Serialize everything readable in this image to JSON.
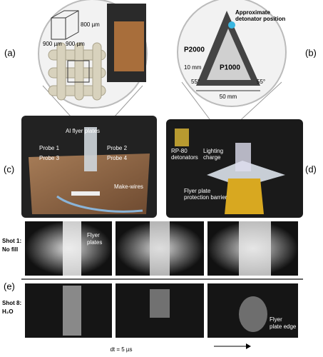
{
  "panel_a": {
    "label": "(a)",
    "dims": [
      "900 µm",
      "900 µm",
      "800 µm"
    ]
  },
  "panel_b": {
    "label": "(b)",
    "annotation": [
      "Approximate",
      "detonator position"
    ],
    "regions": [
      "P2000",
      "P1000"
    ],
    "thickness": "10 mm",
    "angles": [
      "55°",
      "55°"
    ],
    "base": "50 mm"
  },
  "panel_c": {
    "label": "(c)",
    "flyer": "Al flyer plates",
    "probes": [
      "Probe 1",
      "Probe 2",
      "Probe 3",
      "Probe 4"
    ],
    "wires": "Make-wires"
  },
  "panel_d": {
    "label": "(d)",
    "detonators": [
      "RP-80",
      "detonators"
    ],
    "charge": [
      "Lighting",
      "charge"
    ],
    "barrier": [
      "Flyer plate",
      "protection barrier"
    ]
  },
  "panel_e": {
    "label": "(e)",
    "shot1": [
      "Shot 1:",
      "No fill"
    ],
    "shot1_note": [
      "Flyer",
      "plates"
    ],
    "shot8": [
      "Shot 8:",
      "H₂O"
    ],
    "shot8_note": [
      "Flyer",
      "plate edge"
    ],
    "time": "dt = 5 µs"
  }
}
